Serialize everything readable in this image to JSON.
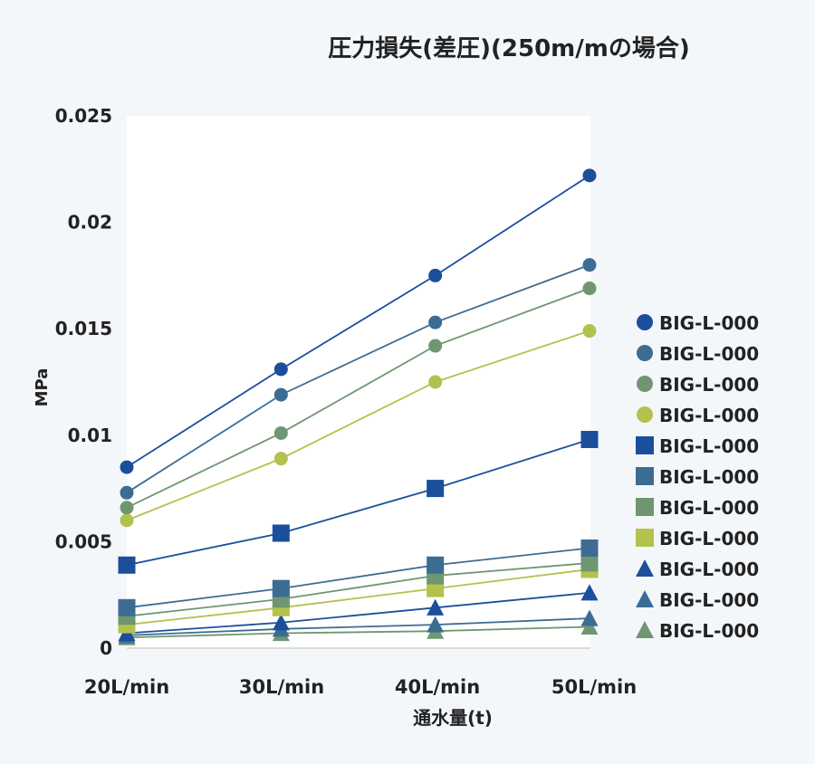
{
  "colors": {
    "background": "#f4f7fa",
    "plot_area": "#ffffff",
    "series_palette": [
      "#1b4f9c",
      "#3d6c93",
      "#6f9671",
      "#b3c24c"
    ]
  },
  "chart_data": {
    "type": "line",
    "title": "圧力損失(差圧)(250m/mの場合)",
    "xlabel": "通水量(t)",
    "ylabel": "MPa",
    "categories": [
      "20L/min",
      "30L/min",
      "40L/min",
      "50L/min"
    ],
    "ylim": [
      0,
      0.025
    ],
    "yticks": [
      "0",
      "0.005",
      "0.01",
      "0.015",
      "0.02",
      "0.025"
    ],
    "grid": false,
    "legend_position": "right",
    "series": [
      {
        "name": "BIG-L-000",
        "marker": "circle",
        "color": "#1b4f9c",
        "values": [
          0.0085,
          0.0131,
          0.0175,
          0.0222
        ]
      },
      {
        "name": "BIG-L-000",
        "marker": "circle",
        "color": "#3d6c93",
        "values": [
          0.0073,
          0.0119,
          0.0153,
          0.018
        ]
      },
      {
        "name": "BIG-L-000",
        "marker": "circle",
        "color": "#6f9671",
        "values": [
          0.0066,
          0.0101,
          0.0142,
          0.0169
        ]
      },
      {
        "name": "BIG-L-000",
        "marker": "circle",
        "color": "#b3c24c",
        "values": [
          0.006,
          0.0089,
          0.0125,
          0.0149
        ]
      },
      {
        "name": "BIG-L-000",
        "marker": "square",
        "color": "#1b4f9c",
        "values": [
          0.0039,
          0.0054,
          0.0075,
          0.0098
        ]
      },
      {
        "name": "BIG-L-000",
        "marker": "square",
        "color": "#3d6c93",
        "values": [
          0.0019,
          0.0028,
          0.0039,
          0.0047
        ]
      },
      {
        "name": "BIG-L-000",
        "marker": "square",
        "color": "#6f9671",
        "values": [
          0.0015,
          0.0023,
          0.0034,
          0.004
        ]
      },
      {
        "name": "BIG-L-000",
        "marker": "square",
        "color": "#b3c24c",
        "values": [
          0.0011,
          0.0019,
          0.0028,
          0.0037
        ]
      },
      {
        "name": "BIG-L-000",
        "marker": "triangle",
        "color": "#1b4f9c",
        "values": [
          0.0007,
          0.0012,
          0.0019,
          0.0026
        ]
      },
      {
        "name": "BIG-L-000",
        "marker": "triangle",
        "color": "#3d6c93",
        "values": [
          0.0006,
          0.0009,
          0.0011,
          0.0014
        ]
      },
      {
        "name": "BIG-L-000",
        "marker": "triangle",
        "color": "#6f9671",
        "values": [
          0.0005,
          0.0007,
          0.0008,
          0.001
        ]
      }
    ]
  }
}
